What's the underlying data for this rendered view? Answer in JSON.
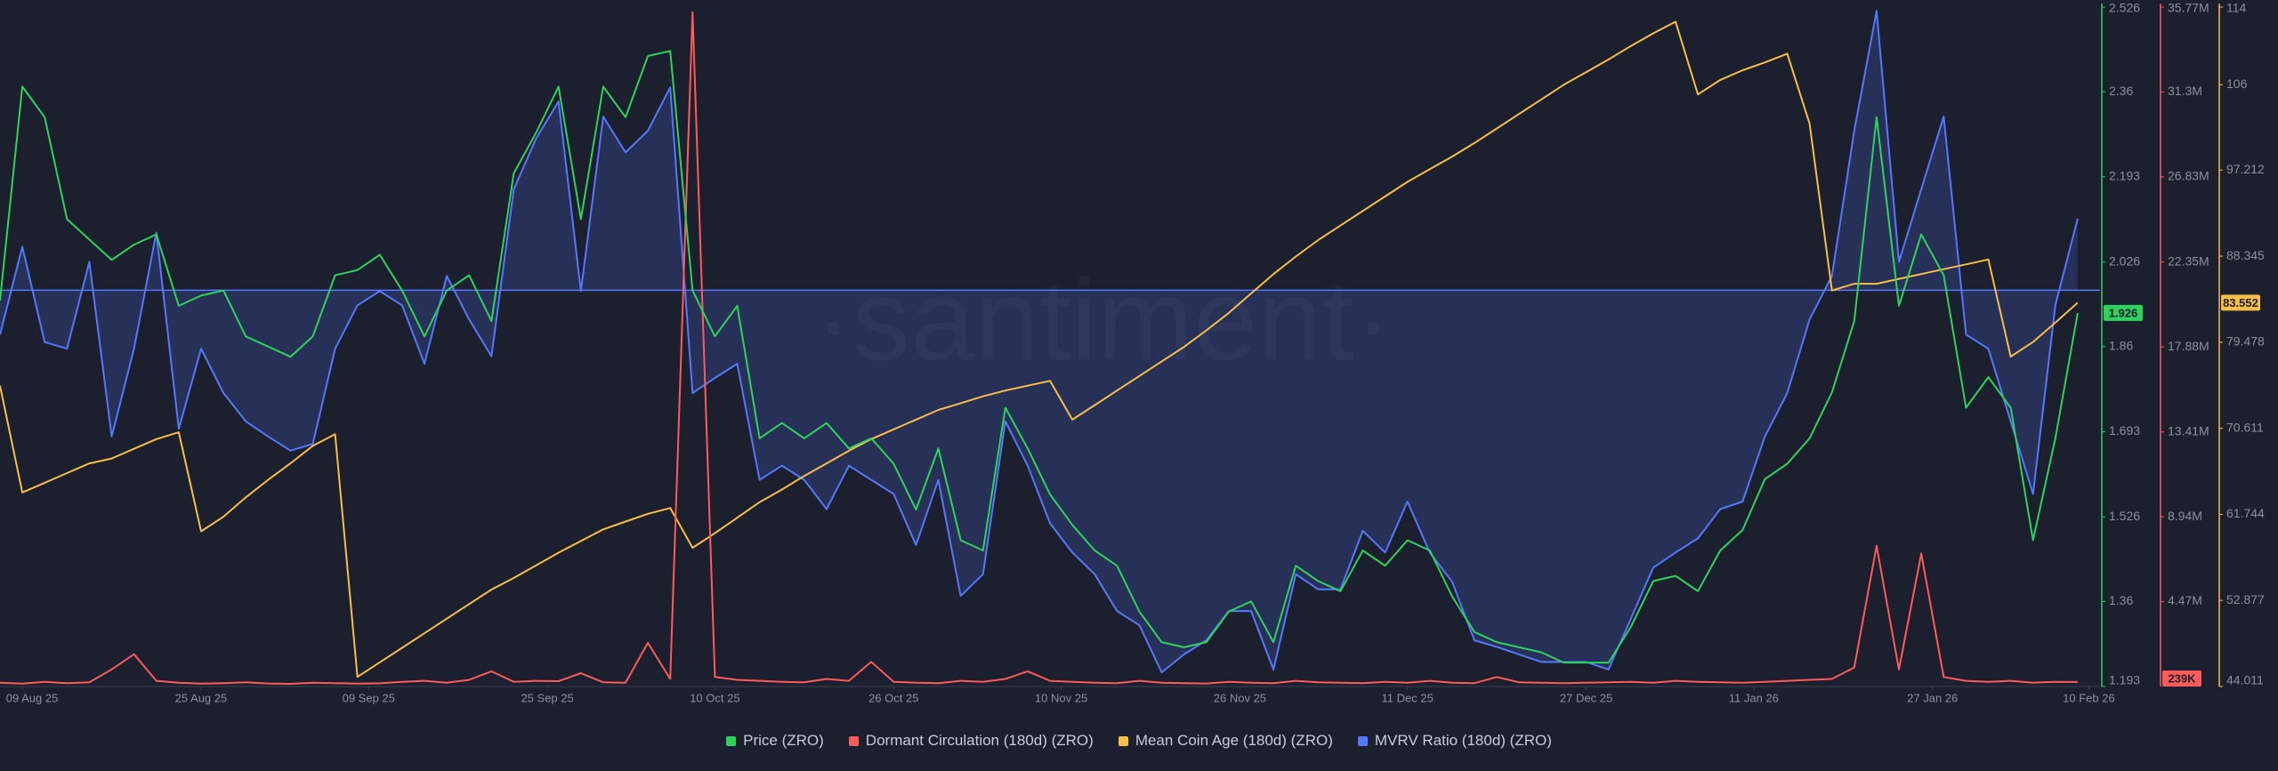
{
  "chart_data": {
    "type": "line",
    "watermark": "·santiment·",
    "grid": false,
    "xlim": [
      "2025-08-07",
      "2026-02-11"
    ],
    "xticks": [
      {
        "value": "2025-08-09",
        "label": "09 Aug 25"
      },
      {
        "value": "2025-08-25",
        "label": "25 Aug 25"
      },
      {
        "value": "2025-09-09",
        "label": "09 Sep 25"
      },
      {
        "value": "2025-09-25",
        "label": "25 Sep 25"
      },
      {
        "value": "2025-10-10",
        "label": "10 Oct 25"
      },
      {
        "value": "2025-10-26",
        "label": "26 Oct 25"
      },
      {
        "value": "2025-11-10",
        "label": "10 Nov 25"
      },
      {
        "value": "2025-11-26",
        "label": "26 Nov 25"
      },
      {
        "value": "2025-12-11",
        "label": "11 Dec 25"
      },
      {
        "value": "2025-12-27",
        "label": "27 Dec 25"
      },
      {
        "value": "2026-01-11",
        "label": "11 Jan 26"
      },
      {
        "value": "2026-01-27",
        "label": "27 Jan 26"
      },
      {
        "value": "2026-02-10",
        "label": "10 Feb 26"
      }
    ],
    "ylim": [
      1.193,
      2.526
    ],
    "yticks": [
      2.526,
      2.36,
      2.193,
      2.026,
      1.86,
      1.693,
      1.526,
      1.36,
      1.193
    ],
    "y2lim": [
      0,
      35770000
    ],
    "y2ticks": [
      {
        "value": 35770000,
        "label": "35.77M"
      },
      {
        "value": 31300000,
        "label": "31.3M"
      },
      {
        "value": 26830000,
        "label": "26.83M"
      },
      {
        "value": 22350000,
        "label": "22.35M"
      },
      {
        "value": 17880000,
        "label": "17.88M"
      },
      {
        "value": 13410000,
        "label": "13.41M"
      },
      {
        "value": 8940000,
        "label": "8.94M"
      },
      {
        "value": 4470000,
        "label": "4.47M"
      }
    ],
    "y3lim": [
      44.011,
      114
    ],
    "y3ticks": [
      114,
      106,
      97.212,
      88.345,
      79.478,
      70.611,
      61.744,
      52.877,
      44.011
    ],
    "y4lim": [
      0.58,
      1.3
    ],
    "x": [
      "2025-08-07",
      "2025-08-09",
      "2025-08-11",
      "2025-08-13",
      "2025-08-15",
      "2025-08-17",
      "2025-08-19",
      "2025-08-21",
      "2025-08-23",
      "2025-08-25",
      "2025-08-27",
      "2025-08-29",
      "2025-08-31",
      "2025-09-02",
      "2025-09-04",
      "2025-09-06",
      "2025-09-08",
      "2025-09-10",
      "2025-09-12",
      "2025-09-14",
      "2025-09-16",
      "2025-09-18",
      "2025-09-20",
      "2025-09-22",
      "2025-09-24",
      "2025-09-26",
      "2025-09-28",
      "2025-09-30",
      "2025-10-02",
      "2025-10-04",
      "2025-10-06",
      "2025-10-08",
      "2025-10-10",
      "2025-10-12",
      "2025-10-14",
      "2025-10-16",
      "2025-10-18",
      "2025-10-20",
      "2025-10-22",
      "2025-10-24",
      "2025-10-26",
      "2025-10-28",
      "2025-10-30",
      "2025-11-01",
      "2025-11-03",
      "2025-11-05",
      "2025-11-07",
      "2025-11-09",
      "2025-11-11",
      "2025-11-13",
      "2025-11-15",
      "2025-11-17",
      "2025-11-19",
      "2025-11-21",
      "2025-11-23",
      "2025-11-25",
      "2025-11-27",
      "2025-11-29",
      "2025-12-01",
      "2025-12-03",
      "2025-12-05",
      "2025-12-07",
      "2025-12-09",
      "2025-12-11",
      "2025-12-13",
      "2025-12-15",
      "2025-12-17",
      "2025-12-19",
      "2025-12-21",
      "2025-12-23",
      "2025-12-25",
      "2025-12-27",
      "2025-12-29",
      "2025-12-31",
      "2026-01-02",
      "2026-01-04",
      "2026-01-06",
      "2026-01-08",
      "2026-01-10",
      "2026-01-12",
      "2026-01-14",
      "2026-01-16",
      "2026-01-18",
      "2026-01-20",
      "2026-01-22",
      "2026-01-24",
      "2026-01-26",
      "2026-01-28",
      "2026-01-30",
      "2026-02-01",
      "2026-02-03",
      "2026-02-05",
      "2026-02-07",
      "2026-02-09"
    ],
    "series": [
      {
        "name": "Price (ZRO)",
        "color": "#2fd35c",
        "axis": "y",
        "values": [
          1.95,
          2.37,
          2.31,
          2.11,
          2.07,
          2.03,
          2.06,
          2.08,
          1.94,
          1.96,
          1.97,
          1.88,
          1.86,
          1.84,
          1.88,
          2.0,
          2.01,
          2.04,
          1.97,
          1.88,
          1.97,
          2.0,
          1.91,
          2.2,
          2.28,
          2.37,
          2.11,
          2.37,
          2.31,
          2.43,
          2.44,
          1.97,
          1.88,
          1.94,
          1.68,
          1.71,
          1.68,
          1.71,
          1.66,
          1.68,
          1.63,
          1.54,
          1.66,
          1.48,
          1.46,
          1.74,
          1.66,
          1.57,
          1.51,
          1.46,
          1.43,
          1.34,
          1.28,
          1.27,
          1.28,
          1.34,
          1.36,
          1.28,
          1.43,
          1.4,
          1.38,
          1.46,
          1.43,
          1.48,
          1.46,
          1.37,
          1.3,
          1.28,
          1.27,
          1.26,
          1.24,
          1.24,
          1.24,
          1.31,
          1.4,
          1.41,
          1.38,
          1.46,
          1.5,
          1.6,
          1.63,
          1.68,
          1.77,
          1.91,
          2.31,
          1.94,
          2.08,
          2.0,
          1.74,
          1.8,
          1.74,
          1.48,
          1.68,
          1.926
        ]
      },
      {
        "name": "Dormant Circulation (180d) (ZRO)",
        "color": "#ff5b5b",
        "axis": "y2",
        "current_label": "239K",
        "values": [
          200000,
          150000,
          250000,
          180000,
          220000,
          900000,
          1700000,
          300000,
          200000,
          150000,
          180000,
          220000,
          160000,
          140000,
          200000,
          180000,
          150000,
          170000,
          250000,
          300000,
          200000,
          350000,
          800000,
          250000,
          300000,
          280000,
          700000,
          220000,
          200000,
          2300000,
          400000,
          35500000,
          500000,
          350000,
          300000,
          250000,
          220000,
          400000,
          300000,
          1300000,
          250000,
          200000,
          180000,
          300000,
          250000,
          400000,
          800000,
          300000,
          250000,
          200000,
          180000,
          300000,
          200000,
          180000,
          160000,
          250000,
          200000,
          180000,
          300000,
          220000,
          200000,
          180000,
          250000,
          200000,
          300000,
          200000,
          180000,
          500000,
          220000,
          200000,
          180000,
          200000,
          220000,
          250000,
          200000,
          300000,
          250000,
          220000,
          200000,
          250000,
          300000,
          350000,
          400000,
          1000000,
          7400000,
          900000,
          7000000,
          500000,
          300000,
          250000,
          300000,
          200000,
          250000,
          239000
        ]
      },
      {
        "name": "Mean Coin Age (180d) (ZRO)",
        "color": "#f7bf47",
        "axis": "y3",
        "values": [
          75.0,
          64.0,
          65.0,
          66.0,
          67.0,
          67.5,
          68.5,
          69.5,
          70.2,
          60.0,
          61.5,
          63.5,
          65.3,
          67.0,
          68.8,
          70.0,
          45.0,
          46.5,
          48.0,
          49.5,
          51.0,
          52.5,
          54.0,
          55.2,
          56.5,
          57.8,
          59.0,
          60.2,
          61.0,
          61.8,
          62.4,
          58.3,
          59.8,
          61.4,
          63.0,
          64.3,
          65.7,
          67.0,
          68.3,
          69.5,
          70.5,
          71.5,
          72.5,
          73.2,
          73.9,
          74.5,
          75.0,
          75.5,
          71.5,
          73.0,
          74.5,
          76.0,
          77.5,
          79.0,
          80.7,
          82.5,
          84.5,
          86.5,
          88.3,
          90.0,
          91.5,
          93.0,
          94.5,
          96.0,
          97.3,
          98.6,
          100.0,
          101.5,
          103.0,
          104.5,
          106.0,
          107.3,
          108.6,
          110.0,
          111.3,
          112.5,
          105.0,
          106.5,
          107.5,
          108.3,
          109.2,
          102.0,
          84.8,
          85.5,
          85.5,
          86.0,
          86.5,
          87.0,
          87.5,
          88.0,
          78.0,
          79.5,
          81.5,
          83.552
        ]
      },
      {
        "name": "MVRV Ratio (180d) (ZRO)",
        "color": "#5677ff",
        "axis": "y4",
        "baseline": 1,
        "values": [
          0.953,
          1.046,
          0.945,
          0.938,
          1.03,
          0.845,
          0.938,
          1.061,
          0.853,
          0.938,
          0.891,
          0.861,
          0.845,
          0.83,
          0.837,
          0.938,
          0.984,
          0.999,
          0.984,
          0.922,
          1.015,
          0.969,
          0.93,
          1.107,
          1.161,
          1.2,
          0.999,
          1.184,
          1.146,
          1.169,
          1.215,
          0.891,
          0.907,
          0.922,
          0.799,
          0.814,
          0.799,
          0.768,
          0.814,
          0.799,
          0.784,
          0.73,
          0.799,
          0.676,
          0.699,
          0.861,
          0.814,
          0.753,
          0.722,
          0.699,
          0.66,
          0.645,
          0.595,
          0.614,
          0.629,
          0.66,
          0.66,
          0.598,
          0.699,
          0.683,
          0.683,
          0.745,
          0.722,
          0.776,
          0.722,
          0.691,
          0.629,
          0.622,
          0.614,
          0.606,
          0.606,
          0.606,
          0.598,
          0.652,
          0.706,
          0.722,
          0.737,
          0.768,
          0.776,
          0.845,
          0.891,
          0.969,
          1.015,
          1.169,
          1.296,
          1.03,
          1.107,
          1.184,
          0.953,
          0.938,
          0.861,
          0.784,
          0.984,
          1.076
        ]
      }
    ]
  }
}
